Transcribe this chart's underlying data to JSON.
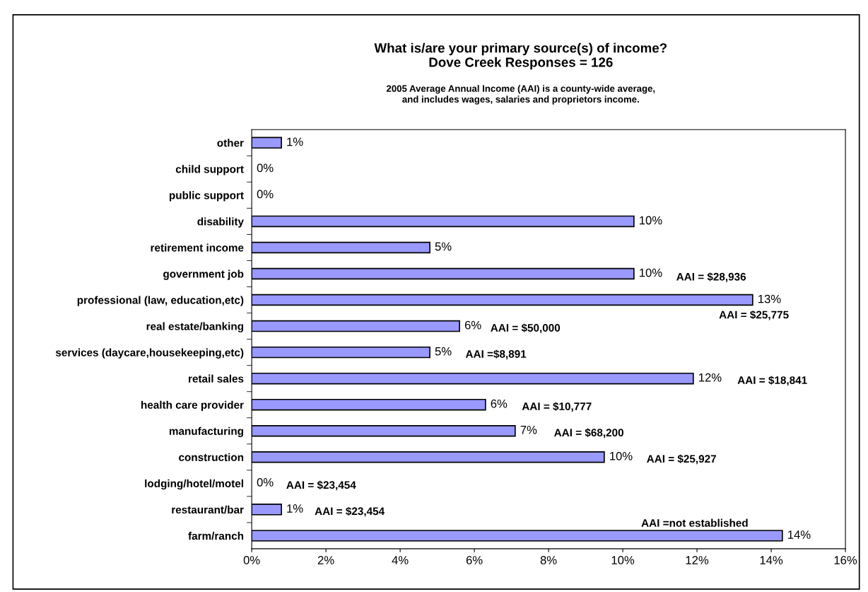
{
  "chart_data": {
    "type": "bar",
    "orientation": "horizontal",
    "title": "What is/are your primary source(s) of income?\nDove Creek Responses = 126",
    "subtitle": "2005 Average Annual Income (AAI) is a county-wide average,\nand includes wages, salaries and proprietors income.",
    "categories": [
      "other",
      "child support",
      "public support",
      "disability",
      "retirement income",
      "government job",
      "professional (law, education,etc)",
      "real estate/banking",
      "services (daycare,housekeeping,etc)",
      "retail sales",
      "health care provider",
      "manufacturing",
      "construction",
      "lodging/hotel/motel",
      "restaurant/bar",
      "farm/ranch"
    ],
    "values": [
      0.8,
      0,
      0,
      10.3,
      4.8,
      10.3,
      13.5,
      5.6,
      4.8,
      11.9,
      6.3,
      7.1,
      9.5,
      0,
      0.8,
      14.3
    ],
    "value_labels": [
      "1%",
      "0%",
      "0%",
      "10%",
      "5%",
      "10%",
      "13%",
      "6%",
      "5%",
      "12%",
      "6%",
      "7%",
      "10%",
      "0%",
      "1%",
      "14%"
    ],
    "color": "#9999ff",
    "xlim": [
      0,
      16
    ],
    "xticks": [
      {
        "value": 0,
        "label": "0%"
      },
      {
        "value": 2,
        "label": "2%"
      },
      {
        "value": 4,
        "label": "4%"
      },
      {
        "value": 6,
        "label": "6%"
      },
      {
        "value": 8,
        "label": "8%"
      },
      {
        "value": 10,
        "label": "10%"
      },
      {
        "value": 12,
        "label": "12%"
      },
      {
        "value": 14,
        "label": "14%"
      },
      {
        "value": 16,
        "label": "16%"
      }
    ],
    "grid": false,
    "legend": false,
    "annotations": [
      "AAI = $28,936",
      "AAI = $25,775",
      "AAI = $50,000",
      "AAI =$8,891",
      "AAI = $18,841",
      "AAI = $10,777",
      "AAI = $68,200",
      "AAI = $25,927",
      "AAI = $23,454",
      "AAI = $23,454",
      "AAI =not established"
    ]
  }
}
